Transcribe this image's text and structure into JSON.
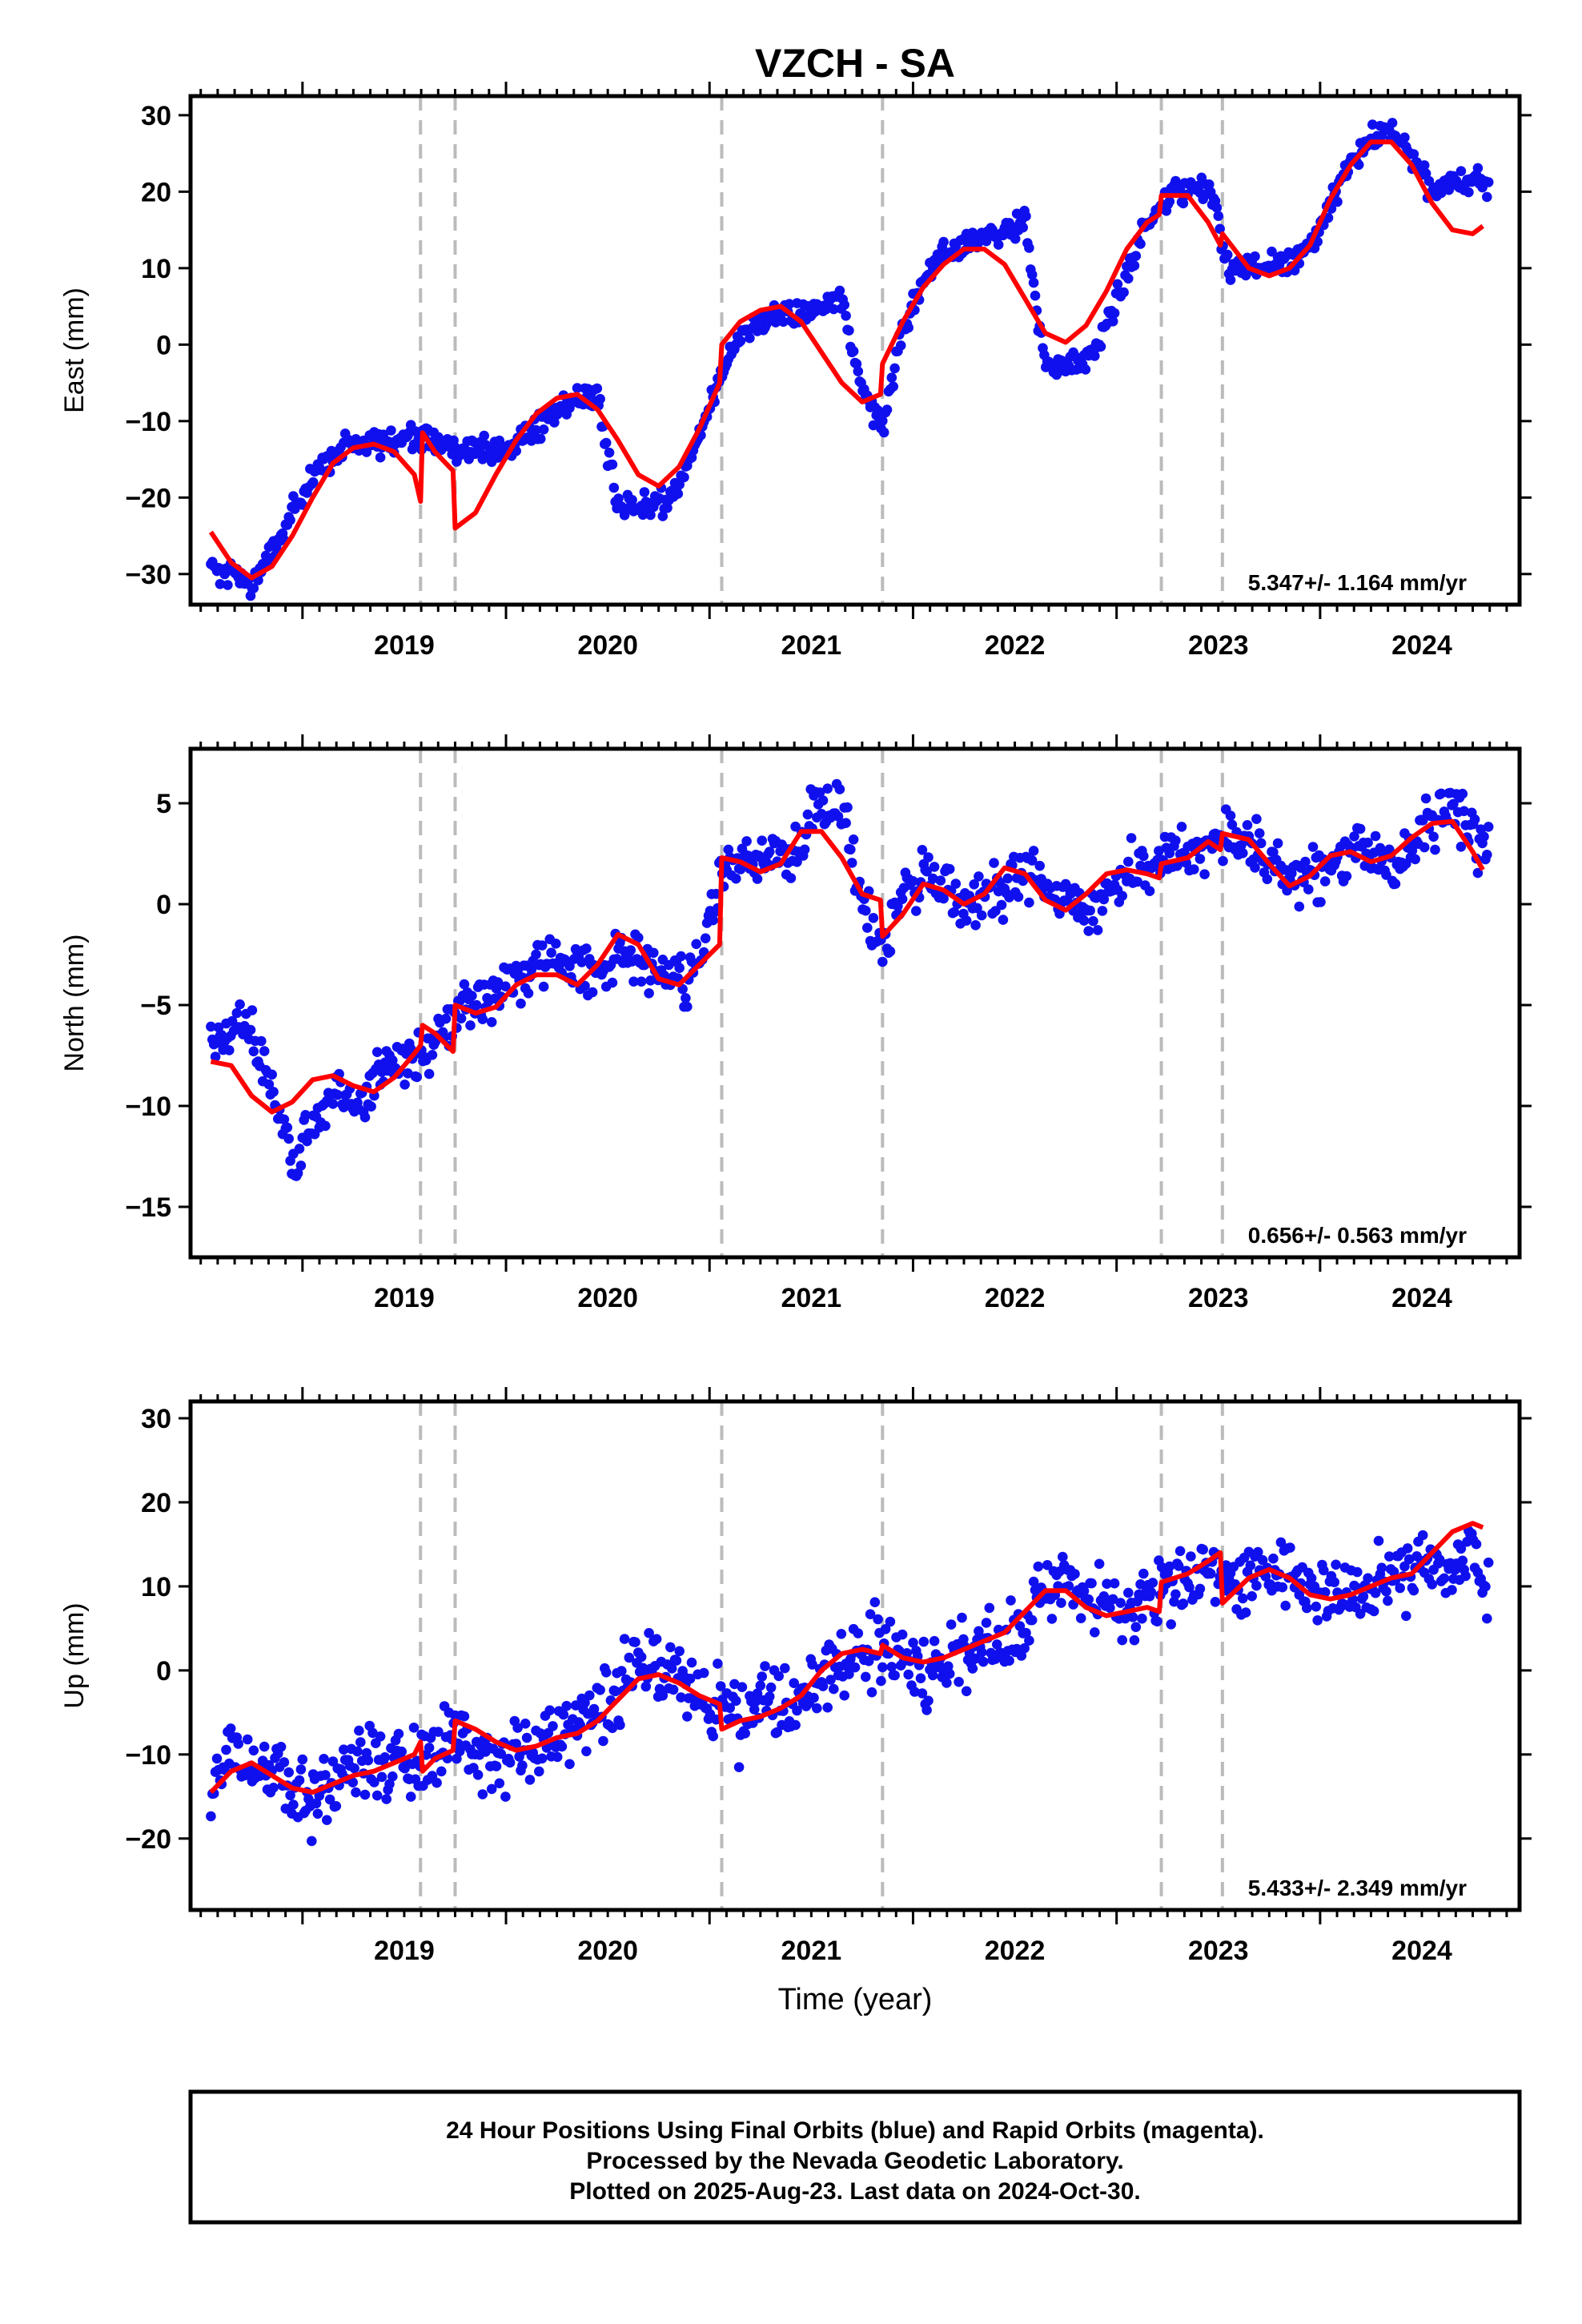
{
  "title": "VZCH - SA",
  "xlabel": "Time (year)",
  "colors": {
    "points": "#1010ee",
    "model": "#ff0000",
    "event_line": "#bbbbbb",
    "frame": "#000000"
  },
  "footer": {
    "line1": "24 Hour Positions Using Final Orbits (blue) and Rapid Orbits (magenta).",
    "line2": "Processed by the Nevada Geodetic Laboratory.",
    "line3": "Plotted on 2025-Aug-23. Last data on 2024-Oct-30."
  },
  "chart_data": [
    {
      "type": "scatter",
      "ylabel": "East (mm)",
      "xlim": [
        2018.45,
        2024.98
      ],
      "ylim": [
        -34,
        32.5
      ],
      "yticks": [
        -30,
        -20,
        -10,
        0,
        10,
        20,
        30
      ],
      "ytick_labels": [
        "−30",
        "−20",
        "−10",
        "0",
        "10",
        "20",
        "30"
      ],
      "xticks": [
        2019,
        2020,
        2021,
        2022,
        2023,
        2024
      ],
      "xtick_labels": [
        "2019",
        "2020",
        "2021",
        "2022",
        "2023",
        "2024"
      ],
      "event_lines": [
        2019.58,
        2019.75,
        2021.06,
        2021.85,
        2023.22,
        2023.52
      ],
      "rate": "5.347+/- 1.164 mm/yr",
      "series": [
        {
          "kind": "points",
          "x": [
            2018.55,
            2018.65,
            2018.75,
            2018.85,
            2018.95,
            2019.05,
            2019.15,
            2019.25,
            2019.35,
            2019.45,
            2019.55,
            2019.65,
            2019.75,
            2019.85,
            2019.95,
            2020.05,
            2020.15,
            2020.25,
            2020.35,
            2020.45,
            2020.55,
            2020.65,
            2020.75,
            2020.85,
            2020.95,
            2021.05,
            2021.15,
            2021.25,
            2021.35,
            2021.45,
            2021.55,
            2021.65,
            2021.75,
            2021.85,
            2021.95,
            2022.05,
            2022.15,
            2022.25,
            2022.35,
            2022.45,
            2022.55,
            2022.65,
            2022.75,
            2022.85,
            2022.95,
            2023.05,
            2023.15,
            2023.25,
            2023.35,
            2023.45,
            2023.55,
            2023.65,
            2023.75,
            2023.85,
            2023.95,
            2024.05,
            2024.15,
            2024.25,
            2024.35,
            2024.45,
            2024.55,
            2024.65,
            2024.75,
            2024.8
          ],
          "y": [
            -29,
            -30,
            -31,
            -27,
            -22,
            -17,
            -14,
            -13,
            -13,
            -13,
            -12,
            -13,
            -14,
            -14,
            -14,
            -13,
            -11,
            -9,
            -7,
            -7,
            -21,
            -21,
            -21,
            -19,
            -12,
            -5,
            1,
            3,
            4,
            4,
            5,
            6,
            -6,
            -11,
            2,
            8,
            12,
            13,
            14,
            15,
            16,
            -3,
            -3,
            -2,
            2,
            9,
            16,
            19,
            20,
            21,
            10,
            10,
            10,
            11,
            13,
            18,
            24,
            27,
            28,
            25,
            20,
            21,
            22,
            21
          ]
        },
        {
          "kind": "line",
          "x": [
            2018.55,
            2018.65,
            2018.75,
            2018.85,
            2018.95,
            2019.05,
            2019.15,
            2019.25,
            2019.35,
            2019.45,
            2019.55,
            2019.58,
            2019.59,
            2019.65,
            2019.74,
            2019.75,
            2019.85,
            2019.95,
            2020.05,
            2020.15,
            2020.25,
            2020.35,
            2020.45,
            2020.55,
            2020.65,
            2020.75,
            2020.85,
            2020.95,
            2021.05,
            2021.06,
            2021.15,
            2021.25,
            2021.35,
            2021.45,
            2021.55,
            2021.65,
            2021.75,
            2021.84,
            2021.85,
            2021.95,
            2022.05,
            2022.15,
            2022.25,
            2022.35,
            2022.45,
            2022.55,
            2022.65,
            2022.75,
            2022.85,
            2022.95,
            2023.05,
            2023.15,
            2023.21,
            2023.22,
            2023.35,
            2023.45,
            2023.51,
            2023.52,
            2023.65,
            2023.75,
            2023.85,
            2023.95,
            2024.05,
            2024.15,
            2024.25,
            2024.35,
            2024.45,
            2024.55,
            2024.65,
            2024.75,
            2024.8
          ],
          "y": [
            -24.5,
            -28.5,
            -30.5,
            -29,
            -25,
            -20,
            -15.5,
            -13.5,
            -13,
            -14,
            -17,
            -20.5,
            -11.5,
            -14,
            -16.5,
            -24,
            -22,
            -17,
            -12.5,
            -9,
            -7,
            -6.5,
            -8.5,
            -12.5,
            -17,
            -18.5,
            -16,
            -11,
            -5,
            0,
            3,
            4.5,
            5,
            3,
            -1,
            -5,
            -7.5,
            -6.5,
            -2.5,
            3,
            7.5,
            10.5,
            12.5,
            12.5,
            10.5,
            6,
            1.5,
            0.3,
            2.5,
            7,
            12.5,
            16,
            17,
            19.5,
            19.5,
            16,
            13,
            14.5,
            10,
            9,
            10,
            13,
            19,
            23.5,
            26.5,
            26.5,
            23.5,
            18.5,
            15,
            14.5,
            15.5
          ]
        }
      ]
    },
    {
      "type": "scatter",
      "ylabel": "North (mm)",
      "xlim": [
        2018.45,
        2024.98
      ],
      "ylim": [
        -17.5,
        7.7
      ],
      "yticks": [
        -15,
        -10,
        -5,
        0,
        5
      ],
      "ytick_labels": [
        "−15",
        "−10",
        "−5",
        "0",
        "5"
      ],
      "xticks": [
        2019,
        2020,
        2021,
        2022,
        2023,
        2024
      ],
      "xtick_labels": [
        "2019",
        "2020",
        "2021",
        "2022",
        "2023",
        "2024"
      ],
      "event_lines": [
        2019.58,
        2019.75,
        2021.06,
        2021.85,
        2023.22,
        2023.52
      ],
      "rate": "0.656+/- 0.563 mm/yr",
      "series": [
        {
          "kind": "points",
          "x": [
            2018.55,
            2018.65,
            2018.75,
            2018.85,
            2018.95,
            2019.05,
            2019.15,
            2019.25,
            2019.35,
            2019.45,
            2019.55,
            2019.65,
            2019.75,
            2019.85,
            2019.95,
            2020.05,
            2020.15,
            2020.25,
            2020.35,
            2020.45,
            2020.55,
            2020.65,
            2020.75,
            2020.85,
            2020.95,
            2021.05,
            2021.15,
            2021.25,
            2021.35,
            2021.45,
            2021.55,
            2021.65,
            2021.75,
            2021.85,
            2021.95,
            2022.05,
            2022.15,
            2022.25,
            2022.35,
            2022.45,
            2022.55,
            2022.65,
            2022.75,
            2022.85,
            2022.95,
            2023.05,
            2023.15,
            2023.25,
            2023.35,
            2023.45,
            2023.55,
            2023.65,
            2023.75,
            2023.85,
            2023.95,
            2024.05,
            2024.15,
            2024.25,
            2024.35,
            2024.45,
            2024.55,
            2024.65,
            2024.75,
            2024.8
          ],
          "y": [
            -7,
            -6,
            -6.5,
            -9,
            -13,
            -11,
            -9,
            -10,
            -9,
            -8,
            -7.5,
            -6.5,
            -5.5,
            -5,
            -4.5,
            -4,
            -3,
            -3,
            -3,
            -3.5,
            -2,
            -3,
            -3.5,
            -4,
            -3,
            1.5,
            2.5,
            2,
            2,
            3,
            5,
            4.5,
            0,
            -2.5,
            1,
            1.5,
            1,
            0,
            0.5,
            0.5,
            2,
            1,
            0,
            -0.5,
            0.5,
            1.5,
            2,
            2.5,
            2.5,
            2.5,
            3.5,
            3,
            2,
            1,
            1.5,
            2,
            2.5,
            2.5,
            2,
            2.5,
            4.5,
            5,
            3.5,
            3
          ]
        },
        {
          "kind": "line",
          "x": [
            2018.55,
            2018.65,
            2018.75,
            2018.85,
            2018.95,
            2019.05,
            2019.15,
            2019.25,
            2019.35,
            2019.45,
            2019.55,
            2019.58,
            2019.59,
            2019.65,
            2019.74,
            2019.75,
            2019.85,
            2019.95,
            2020.05,
            2020.15,
            2020.25,
            2020.35,
            2020.45,
            2020.55,
            2020.65,
            2020.75,
            2020.85,
            2020.95,
            2021.05,
            2021.06,
            2021.15,
            2021.25,
            2021.35,
            2021.45,
            2021.55,
            2021.65,
            2021.75,
            2021.84,
            2021.85,
            2021.95,
            2022.05,
            2022.15,
            2022.25,
            2022.35,
            2022.45,
            2022.55,
            2022.65,
            2022.75,
            2022.85,
            2022.95,
            2023.05,
            2023.15,
            2023.21,
            2023.22,
            2023.35,
            2023.45,
            2023.51,
            2023.52,
            2023.65,
            2023.75,
            2023.85,
            2023.95,
            2024.05,
            2024.15,
            2024.25,
            2024.35,
            2024.45,
            2024.55,
            2024.65,
            2024.75,
            2024.8
          ],
          "y": [
            -7.8,
            -8,
            -9.5,
            -10.3,
            -9.8,
            -8.7,
            -8.5,
            -9,
            -9.3,
            -8.6,
            -7.4,
            -7,
            -6,
            -6.4,
            -7.3,
            -5,
            -5.4,
            -5.1,
            -4,
            -3.5,
            -3.5,
            -4,
            -3,
            -1.5,
            -2,
            -3.7,
            -4,
            -3,
            -2,
            2.3,
            2.1,
            1.6,
            2,
            3.6,
            3.6,
            2.3,
            0.5,
            0.2,
            -1.6,
            -0.5,
            1,
            0.7,
            0,
            0.5,
            1.8,
            1.5,
            0.2,
            -0.3,
            0.5,
            1.5,
            1.7,
            1.5,
            1.3,
            2,
            2.3,
            3.1,
            2.7,
            3.5,
            3.2,
            2,
            0.9,
            1.4,
            2.4,
            2.6,
            2.1,
            2.4,
            3.3,
            4,
            4.1,
            2.6,
            1.7
          ]
        }
      ]
    },
    {
      "type": "scatter",
      "ylabel": "Up (mm)",
      "xlim": [
        2018.45,
        2024.98
      ],
      "ylim": [
        -28.5,
        32
      ],
      "yticks": [
        -20,
        -10,
        0,
        10,
        20,
        30
      ],
      "ytick_labels": [
        "−20",
        "−10",
        "0",
        "10",
        "20",
        "30"
      ],
      "xticks": [
        2019,
        2020,
        2021,
        2022,
        2023,
        2024
      ],
      "xtick_labels": [
        "2019",
        "2020",
        "2021",
        "2022",
        "2023",
        "2024"
      ],
      "event_lines": [
        2019.58,
        2019.75,
        2021.06,
        2021.85,
        2023.22,
        2023.52
      ],
      "rate": "5.433+/- 2.349 mm/yr",
      "series": [
        {
          "kind": "points",
          "x": [
            2018.55,
            2018.65,
            2018.75,
            2018.85,
            2018.95,
            2019.05,
            2019.15,
            2019.25,
            2019.35,
            2019.45,
            2019.55,
            2019.65,
            2019.75,
            2019.85,
            2019.95,
            2020.05,
            2020.15,
            2020.25,
            2020.35,
            2020.45,
            2020.55,
            2020.65,
            2020.75,
            2020.85,
            2020.95,
            2021.05,
            2021.15,
            2021.25,
            2021.35,
            2021.45,
            2021.55,
            2021.65,
            2021.75,
            2021.85,
            2021.95,
            2022.05,
            2022.15,
            2022.25,
            2022.35,
            2022.45,
            2022.55,
            2022.65,
            2022.75,
            2022.85,
            2022.95,
            2023.05,
            2023.15,
            2023.25,
            2023.35,
            2023.45,
            2023.55,
            2023.65,
            2023.75,
            2023.85,
            2023.95,
            2024.05,
            2024.15,
            2024.25,
            2024.35,
            2024.45,
            2024.55,
            2024.65,
            2024.75,
            2024.8
          ],
          "y": [
            -13,
            -10,
            -12,
            -12,
            -14,
            -16,
            -14,
            -12,
            -12,
            -11,
            -10,
            -10,
            -8,
            -10,
            -11,
            -9,
            -9,
            -8,
            -7,
            -5,
            -3,
            0,
            0,
            -2,
            -3,
            -5,
            -6,
            -5,
            -4,
            -3,
            -1,
            1,
            2,
            3,
            1,
            0,
            1,
            2,
            3,
            4,
            6,
            9,
            11,
            9,
            8,
            7,
            8,
            10,
            10,
            12,
            10,
            11,
            12,
            11,
            10,
            10,
            9,
            10,
            11,
            12,
            13,
            12,
            15,
            10
          ]
        },
        {
          "kind": "line",
          "x": [
            2018.55,
            2018.65,
            2018.75,
            2018.85,
            2018.95,
            2019.05,
            2019.15,
            2019.25,
            2019.35,
            2019.45,
            2019.55,
            2019.58,
            2019.59,
            2019.65,
            2019.74,
            2019.75,
            2019.85,
            2019.95,
            2020.05,
            2020.15,
            2020.25,
            2020.35,
            2020.45,
            2020.55,
            2020.65,
            2020.75,
            2020.85,
            2020.95,
            2021.05,
            2021.06,
            2021.15,
            2021.25,
            2021.35,
            2021.45,
            2021.55,
            2021.65,
            2021.75,
            2021.84,
            2021.85,
            2021.95,
            2022.05,
            2022.15,
            2022.25,
            2022.35,
            2022.45,
            2022.55,
            2022.65,
            2022.75,
            2022.85,
            2022.95,
            2023.05,
            2023.15,
            2023.21,
            2023.22,
            2023.35,
            2023.45,
            2023.51,
            2023.52,
            2023.65,
            2023.75,
            2023.85,
            2023.95,
            2024.05,
            2024.15,
            2024.25,
            2024.35,
            2024.45,
            2024.55,
            2024.65,
            2024.75,
            2024.8
          ],
          "y": [
            -14.5,
            -12,
            -11,
            -12.5,
            -14,
            -14.5,
            -13.5,
            -12.5,
            -12,
            -11,
            -10,
            -8.5,
            -12,
            -10.5,
            -9.5,
            -6,
            -7,
            -8.5,
            -9.5,
            -9,
            -8,
            -7.5,
            -6,
            -3.5,
            -1,
            -0.5,
            -1.5,
            -3,
            -4,
            -7,
            -6,
            -5.5,
            -4.5,
            -3,
            0,
            2,
            2.5,
            2,
            3,
            1.5,
            1,
            1.5,
            2.5,
            3.5,
            4.5,
            7,
            9.5,
            9.5,
            7.5,
            6.5,
            7,
            7.5,
            7,
            10.5,
            11.5,
            13,
            14,
            8,
            11,
            12,
            11,
            9,
            8.5,
            9,
            10,
            11,
            11.5,
            14,
            16.5,
            17.5,
            17
          ]
        }
      ]
    }
  ]
}
